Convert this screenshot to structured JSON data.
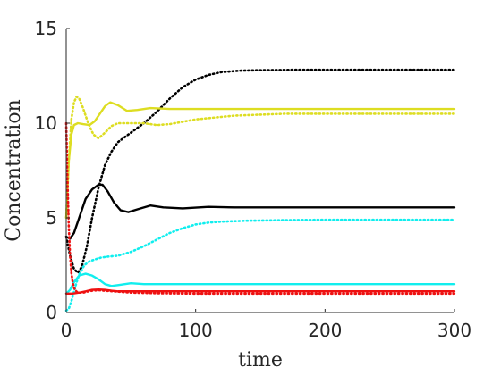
{
  "chart_data": {
    "type": "line",
    "xlabel": "time",
    "ylabel": "Concentration",
    "xlim": [
      0,
      300
    ],
    "ylim": [
      0,
      15
    ],
    "xticks": [
      0,
      100,
      200,
      300
    ],
    "yticks": [
      0,
      5,
      10,
      15
    ],
    "grid": false,
    "series": [
      {
        "color": "#000000",
        "style": "solid",
        "x": [
          0,
          3,
          6,
          10,
          15,
          20,
          25,
          28,
          32,
          37,
          42,
          48,
          55,
          65,
          75,
          90,
          110,
          130,
          160,
          200,
          250,
          300
        ],
        "y": [
          4.0,
          3.9,
          4.2,
          5.0,
          6.0,
          6.5,
          6.75,
          6.75,
          6.4,
          5.8,
          5.4,
          5.3,
          5.45,
          5.65,
          5.55,
          5.5,
          5.58,
          5.55,
          5.55,
          5.55,
          5.55,
          5.55
        ]
      },
      {
        "color": "#000000",
        "style": "dotted",
        "x": [
          0,
          3,
          6,
          9,
          12,
          16,
          20,
          25,
          30,
          35,
          40,
          50,
          60,
          70,
          80,
          90,
          100,
          110,
          120,
          135,
          150,
          175,
          200,
          250,
          300
        ],
        "y": [
          4.0,
          3.0,
          2.3,
          2.1,
          2.4,
          3.5,
          5.0,
          6.6,
          7.8,
          8.5,
          9.0,
          9.5,
          10.0,
          10.6,
          11.3,
          11.9,
          12.3,
          12.55,
          12.7,
          12.78,
          12.8,
          12.82,
          12.82,
          12.82,
          12.82
        ]
      },
      {
        "color": "#dddd22",
        "style": "solid",
        "x": [
          0,
          2,
          4,
          6,
          9,
          13,
          18,
          22,
          26,
          30,
          34,
          40,
          47,
          55,
          65,
          80,
          100,
          130,
          170,
          220,
          300
        ],
        "y": [
          5.0,
          8.0,
          9.4,
          9.9,
          10.0,
          9.95,
          9.9,
          10.1,
          10.5,
          10.9,
          11.1,
          10.95,
          10.65,
          10.7,
          10.8,
          10.75,
          10.75,
          10.75,
          10.75,
          10.75,
          10.75
        ]
      },
      {
        "color": "#dddd22",
        "style": "dotted",
        "x": [
          0,
          2,
          4,
          6,
          8,
          10,
          13,
          17,
          21,
          25,
          30,
          35,
          40,
          50,
          60,
          70,
          80,
          100,
          130,
          170,
          220,
          300
        ],
        "y": [
          5.0,
          8.0,
          10.2,
          11.1,
          11.4,
          11.3,
          10.8,
          10.0,
          9.4,
          9.2,
          9.5,
          9.85,
          10.0,
          10.0,
          10.0,
          9.9,
          9.95,
          10.2,
          10.4,
          10.5,
          10.5,
          10.5
        ]
      },
      {
        "color": "#11eeee",
        "style": "solid",
        "x": [
          0,
          3,
          6,
          10,
          15,
          20,
          25,
          30,
          35,
          40,
          50,
          60,
          80,
          100,
          150,
          200,
          300
        ],
        "y": [
          1.0,
          1.2,
          1.6,
          1.95,
          2.05,
          1.95,
          1.75,
          1.5,
          1.4,
          1.45,
          1.55,
          1.5,
          1.5,
          1.5,
          1.5,
          1.5,
          1.5
        ]
      },
      {
        "color": "#11eeee",
        "style": "dotted",
        "x": [
          0,
          2,
          4,
          6,
          8,
          10,
          14,
          18,
          22,
          27,
          32,
          40,
          50,
          60,
          70,
          80,
          90,
          100,
          110,
          120,
          140,
          170,
          200,
          250,
          300
        ],
        "y": [
          0.1,
          0.2,
          0.6,
          1.1,
          1.6,
          2.0,
          2.5,
          2.7,
          2.8,
          2.9,
          2.95,
          3.0,
          3.2,
          3.5,
          3.85,
          4.2,
          4.45,
          4.65,
          4.75,
          4.8,
          4.85,
          4.88,
          4.9,
          4.9,
          4.9
        ]
      },
      {
        "color": "#ee1111",
        "style": "solid",
        "x": [
          0,
          5,
          10,
          15,
          20,
          25,
          30,
          35,
          40,
          50,
          60,
          80,
          100,
          150,
          200,
          300
        ],
        "y": [
          1.0,
          1.0,
          1.05,
          1.12,
          1.2,
          1.22,
          1.2,
          1.15,
          1.12,
          1.12,
          1.12,
          1.12,
          1.12,
          1.12,
          1.12,
          1.12
        ]
      },
      {
        "color": "#ee1111",
        "style": "dotted",
        "x": [
          0,
          1,
          2,
          3,
          4,
          5,
          6,
          8,
          10,
          13,
          16,
          20,
          25,
          30,
          40,
          50,
          70,
          100,
          150,
          200,
          300
        ],
        "y": [
          10.0,
          7.0,
          4.5,
          3.0,
          2.1,
          1.6,
          1.3,
          1.1,
          1.05,
          1.05,
          1.1,
          1.15,
          1.18,
          1.15,
          1.1,
          1.05,
          1.02,
          1.0,
          1.0,
          1.0,
          1.0
        ]
      }
    ]
  }
}
